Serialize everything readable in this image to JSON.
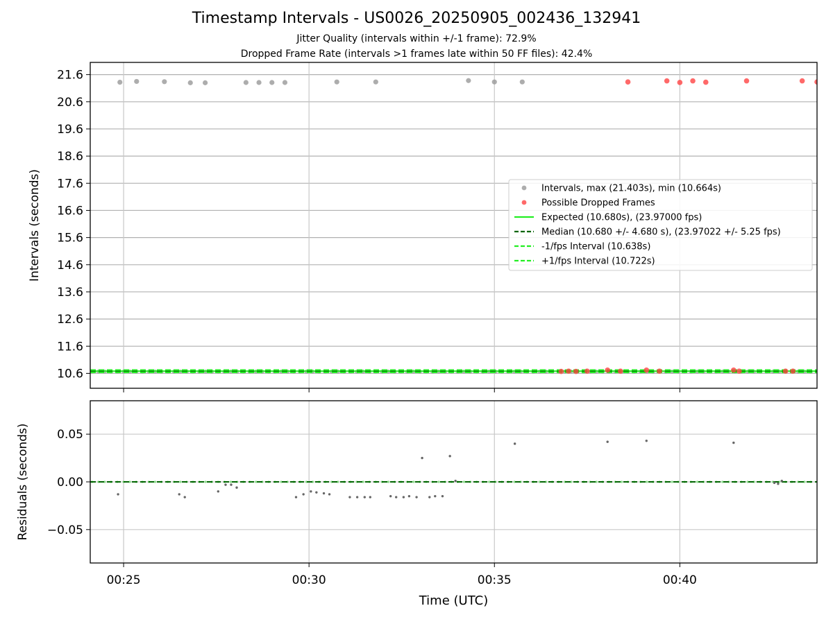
{
  "chart_data": [
    {
      "type": "scatter",
      "title": "Timestamp Intervals - US0026_20250905_002436_132941",
      "subtitle_1": "Jitter Quality (intervals within +/-1 frame): 72.9%",
      "subtitle_2": "Dropped Frame Rate (intervals >1 frames late within 50 FF files): 42.4%",
      "ylabel": "Intervals (seconds)",
      "ylim": [
        10.05,
        22.05
      ],
      "yticks": [
        "10.6",
        "11.6",
        "12.6",
        "13.6",
        "14.6",
        "15.6",
        "16.6",
        "17.6",
        "18.6",
        "19.6",
        "20.6",
        "21.6"
      ],
      "x_axis_minutes_range": [
        24.1,
        43.7
      ],
      "grid": true,
      "legend_position": "center-right",
      "series": [
        {
          "name": "Intervals, max (21.403s), min (10.664s)",
          "color": "#999999",
          "high_points": [
            [
              24.9,
              21.32
            ],
            [
              25.35,
              21.35
            ],
            [
              26.1,
              21.34
            ],
            [
              26.8,
              21.3
            ],
            [
              27.2,
              21.3
            ],
            [
              28.3,
              21.31
            ],
            [
              28.65,
              21.31
            ],
            [
              29.0,
              21.31
            ],
            [
              29.35,
              21.31
            ],
            [
              30.75,
              21.33
            ],
            [
              31.8,
              21.33
            ],
            [
              34.3,
              21.38
            ],
            [
              35.0,
              21.33
            ],
            [
              35.75,
              21.33
            ]
          ],
          "base_level": 10.664
        },
        {
          "name": "Possible Dropped Frames",
          "color": "#ff4444",
          "high_points": [
            [
              38.6,
              21.33
            ],
            [
              39.65,
              21.37
            ],
            [
              40.0,
              21.31
            ],
            [
              40.35,
              21.37
            ],
            [
              40.7,
              21.32
            ],
            [
              41.8,
              21.37
            ],
            [
              43.3,
              21.37
            ],
            [
              43.7,
              21.33
            ]
          ],
          "low_points": [
            [
              36.8,
              10.67
            ],
            [
              37.0,
              10.68
            ],
            [
              37.2,
              10.67
            ],
            [
              37.5,
              10.68
            ],
            [
              38.05,
              10.72
            ],
            [
              38.4,
              10.68
            ],
            [
              39.1,
              10.72
            ],
            [
              39.45,
              10.68
            ],
            [
              41.45,
              10.72
            ],
            [
              41.6,
              10.68
            ],
            [
              42.85,
              10.68
            ],
            [
              43.05,
              10.68
            ]
          ]
        },
        {
          "name": "Expected (10.680s), (23.97000 fps)",
          "value": 10.68,
          "color": "#22ee22",
          "style": "solid"
        },
        {
          "name": "Median (10.680 +/- 4.680 s), (23.97022 +/- 5.25 fps)",
          "value": 10.68,
          "color": "#006400",
          "style": "dashed"
        },
        {
          "name": "-1/fps Interval (10.638s)",
          "value": 10.638,
          "color": "#22ee22",
          "style": "dashed"
        },
        {
          "name": "+1/fps Interval (10.722s)",
          "value": 10.722,
          "color": "#22ee22",
          "style": "dashed"
        }
      ]
    },
    {
      "type": "scatter",
      "ylabel": "Residuals (seconds)",
      "xlabel": "Time (UTC)",
      "ylim": [
        -0.085,
        0.085
      ],
      "yticks": [
        "0.05",
        "0.00",
        "−0.05"
      ],
      "xticks": [
        "00:25",
        "00:30",
        "00:35",
        "00:40"
      ],
      "xtick_minutes": [
        25,
        30,
        35,
        40
      ],
      "x_axis_minutes_range": [
        24.1,
        43.7
      ],
      "grid": true,
      "series": [
        {
          "name": "Residuals",
          "color": "#666666",
          "points": [
            [
              24.85,
              -0.013
            ],
            [
              26.5,
              -0.013
            ],
            [
              26.65,
              -0.016
            ],
            [
              27.55,
              -0.01
            ],
            [
              27.75,
              -0.003
            ],
            [
              27.9,
              -0.003
            ],
            [
              28.05,
              -0.006
            ],
            [
              29.65,
              -0.016
            ],
            [
              29.85,
              -0.013
            ],
            [
              30.05,
              -0.01
            ],
            [
              30.2,
              -0.011
            ],
            [
              30.4,
              -0.012
            ],
            [
              30.55,
              -0.013
            ],
            [
              31.1,
              -0.016
            ],
            [
              31.3,
              -0.016
            ],
            [
              31.5,
              -0.016
            ],
            [
              31.65,
              -0.016
            ],
            [
              32.2,
              -0.015
            ],
            [
              32.35,
              -0.016
            ],
            [
              32.55,
              -0.016
            ],
            [
              32.7,
              -0.015
            ],
            [
              32.9,
              -0.016
            ],
            [
              33.05,
              0.025
            ],
            [
              33.25,
              -0.016
            ],
            [
              33.4,
              -0.015
            ],
            [
              33.6,
              -0.015
            ],
            [
              33.8,
              0.027
            ],
            [
              33.95,
              0.001
            ],
            [
              35.55,
              0.04
            ],
            [
              38.05,
              0.042
            ],
            [
              39.1,
              0.043
            ],
            [
              41.45,
              0.041
            ],
            [
              42.55,
              -0.001
            ],
            [
              42.65,
              -0.002
            ],
            [
              42.75,
              0.001
            ]
          ]
        },
        {
          "name": "zero-line",
          "value": 0.0,
          "color": "#006400",
          "style": "dashed"
        }
      ]
    }
  ]
}
